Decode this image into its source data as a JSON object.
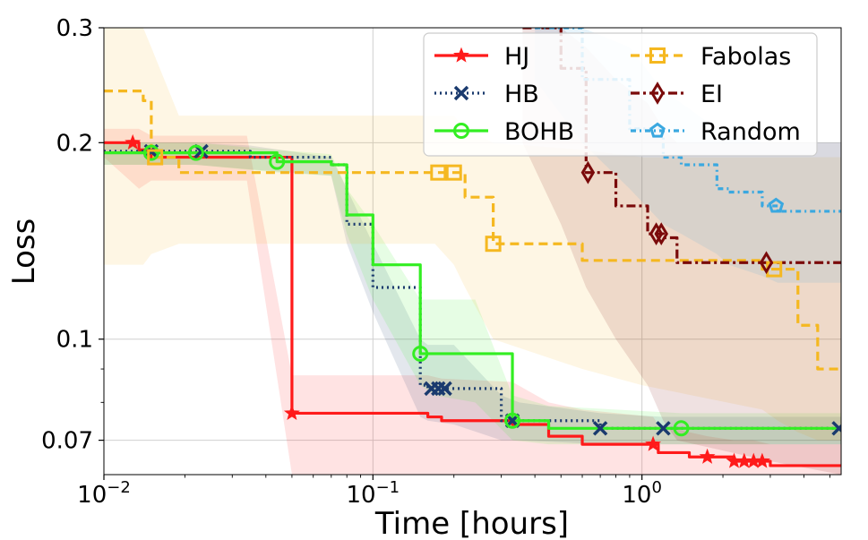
{
  "chart_data": {
    "type": "line",
    "xlabel": "Time [hours]",
    "ylabel": "Loss",
    "x_scale": "log",
    "y_scale": "log",
    "xlim": [
      0.01,
      5.5
    ],
    "ylim": [
      0.062,
      0.3
    ],
    "x_ticks": [
      {
        "value": 0.01,
        "base": "10",
        "exp": "−2"
      },
      {
        "value": 0.1,
        "base": "10",
        "exp": "−1"
      },
      {
        "value": 1,
        "base": "10",
        "exp": "0"
      }
    ],
    "y_ticks": [
      {
        "value": 0.3,
        "label": "0.3"
      },
      {
        "value": 0.2,
        "label": "0.2"
      },
      {
        "value": 0.1,
        "label": "0.1"
      },
      {
        "value": 0.07,
        "label": "0.07"
      }
    ],
    "grid": true,
    "legend_position": "top-right",
    "series": [
      {
        "name": "HJ",
        "color": "#ff1a1a",
        "dash": "",
        "marker": "star",
        "x": [
          0.01,
          0.0125,
          0.0135,
          0.015,
          0.034,
          0.05,
          0.052,
          0.16,
          0.18,
          0.33,
          0.45,
          0.6,
          1.1,
          1.15,
          1.5,
          1.75,
          2.2,
          2.6,
          3.0,
          5.5
        ],
        "y": [
          0.2,
          0.2,
          0.195,
          0.19,
          0.19,
          0.077,
          0.077,
          0.076,
          0.075,
          0.074,
          0.071,
          0.069,
          0.069,
          0.067,
          0.066,
          0.066,
          0.065,
          0.065,
          0.064,
          0.064
        ],
        "marker_x": [
          0.0128,
          0.05,
          1.1,
          1.75,
          2.2,
          2.4,
          2.6,
          2.8
        ],
        "band_lo": [
          0.19,
          0.175,
          0.17,
          0.175,
          0.175,
          0.062,
          0.062,
          0.062,
          0.062,
          0.062,
          0.062,
          0.062,
          0.062,
          0.062,
          0.062,
          0.062,
          0.062,
          0.062,
          0.062,
          0.062
        ],
        "band_hi": [
          0.21,
          0.21,
          0.21,
          0.205,
          0.205,
          0.088,
          0.088,
          0.088,
          0.087,
          0.086,
          0.08,
          0.078,
          0.076,
          0.074,
          0.072,
          0.071,
          0.07,
          0.07,
          0.069,
          0.069
        ]
      },
      {
        "name": "HB",
        "color": "#1a3a6e",
        "dash": "2,4",
        "marker": "x",
        "x": [
          0.01,
          0.015,
          0.022,
          0.035,
          0.07,
          0.08,
          0.1,
          0.15,
          0.16,
          0.2,
          0.3,
          0.35,
          0.7,
          1.2,
          5.5
        ],
        "y": [
          0.194,
          0.194,
          0.194,
          0.19,
          0.185,
          0.15,
          0.12,
          0.085,
          0.084,
          0.084,
          0.075,
          0.075,
          0.073,
          0.073,
          0.073
        ],
        "marker_x": [
          0.015,
          0.023,
          0.165,
          0.175,
          0.185,
          0.33,
          0.7,
          1.2,
          5.4
        ],
        "band_lo": [
          0.185,
          0.185,
          0.185,
          0.182,
          0.178,
          0.14,
          0.11,
          0.076,
          0.075,
          0.074,
          0.07,
          0.07,
          0.069,
          0.069,
          0.069
        ],
        "band_hi": [
          0.2,
          0.2,
          0.2,
          0.198,
          0.19,
          0.17,
          0.14,
          0.1,
          0.098,
          0.098,
          0.082,
          0.08,
          0.077,
          0.076,
          0.076
        ]
      },
      {
        "name": "BOHB",
        "color": "#33ee22",
        "dash": "",
        "marker": "circle",
        "x": [
          0.01,
          0.015,
          0.022,
          0.044,
          0.07,
          0.08,
          0.1,
          0.15,
          0.17,
          0.24,
          0.33,
          0.45,
          1.4,
          5.5
        ],
        "y": [
          0.193,
          0.193,
          0.193,
          0.187,
          0.185,
          0.155,
          0.13,
          0.095,
          0.095,
          0.095,
          0.075,
          0.073,
          0.073,
          0.073
        ],
        "marker_x": [
          0.015,
          0.022,
          0.044,
          0.15,
          0.33,
          1.4
        ],
        "band_lo": [
          0.185,
          0.185,
          0.185,
          0.18,
          0.178,
          0.145,
          0.115,
          0.085,
          0.082,
          0.08,
          0.07,
          0.069,
          0.069,
          0.069
        ],
        "band_hi": [
          0.2,
          0.2,
          0.2,
          0.195,
          0.192,
          0.17,
          0.15,
          0.115,
          0.115,
          0.115,
          0.082,
          0.079,
          0.077,
          0.077
        ]
      },
      {
        "name": "Fabolas",
        "color": "#f5b820",
        "dash": "10,6",
        "marker": "square",
        "x": [
          0.01,
          0.014,
          0.015,
          0.019,
          0.17,
          0.2,
          0.22,
          0.28,
          0.6,
          1.0,
          2.8,
          3.2,
          3.8,
          4.5,
          5.5
        ],
        "y": [
          0.24,
          0.232,
          0.19,
          0.18,
          0.18,
          0.18,
          0.165,
          0.14,
          0.132,
          0.132,
          0.128,
          0.128,
          0.105,
          0.09,
          0.09
        ],
        "marker_x": [
          0.0155,
          0.175,
          0.2,
          0.28,
          3.1
        ],
        "band_lo": [
          0.13,
          0.13,
          0.135,
          0.14,
          0.14,
          0.13,
          0.12,
          0.1,
          0.09,
          0.085,
          0.078,
          0.075,
          0.072,
          0.07,
          0.07
        ],
        "band_hi": [
          0.3,
          0.3,
          0.28,
          0.22,
          0.22,
          0.22,
          0.21,
          0.2,
          0.195,
          0.19,
          0.19,
          0.19,
          0.19,
          0.19,
          0.19
        ]
      },
      {
        "name": "EI",
        "color": "#7a0a0a",
        "dash": "10,4,3,4",
        "marker": "diamond",
        "x": [
          0.36,
          0.5,
          0.62,
          0.8,
          1.05,
          1.2,
          1.35,
          3.0,
          5.5
        ],
        "y": [
          0.3,
          0.26,
          0.18,
          0.16,
          0.145,
          0.143,
          0.131,
          0.131,
          0.131
        ],
        "marker_x": [
          0.63,
          1.13,
          1.18,
          2.9
        ],
        "band_lo": [
          0.2,
          0.15,
          0.12,
          0.1,
          0.085,
          0.075,
          0.07,
          0.065,
          0.062
        ],
        "band_hi": [
          0.3,
          0.3,
          0.28,
          0.25,
          0.23,
          0.21,
          0.2,
          0.2,
          0.2
        ]
      },
      {
        "name": "Random",
        "color": "#3aa8e0",
        "dash": "6,4,2,4",
        "marker": "pentagon",
        "x": [
          0.4,
          0.6,
          0.9,
          1.2,
          1.4,
          1.9,
          2.1,
          2.8,
          3.2,
          5.5
        ],
        "y": [
          0.3,
          0.25,
          0.21,
          0.19,
          0.185,
          0.17,
          0.168,
          0.16,
          0.157,
          0.157
        ],
        "marker_x": [
          3.15
        ],
        "band_lo": [
          0.25,
          0.2,
          0.17,
          0.15,
          0.145,
          0.135,
          0.13,
          0.125,
          0.122,
          0.122
        ],
        "band_hi": [
          0.3,
          0.3,
          0.28,
          0.24,
          0.23,
          0.21,
          0.205,
          0.2,
          0.2,
          0.2
        ]
      }
    ]
  }
}
